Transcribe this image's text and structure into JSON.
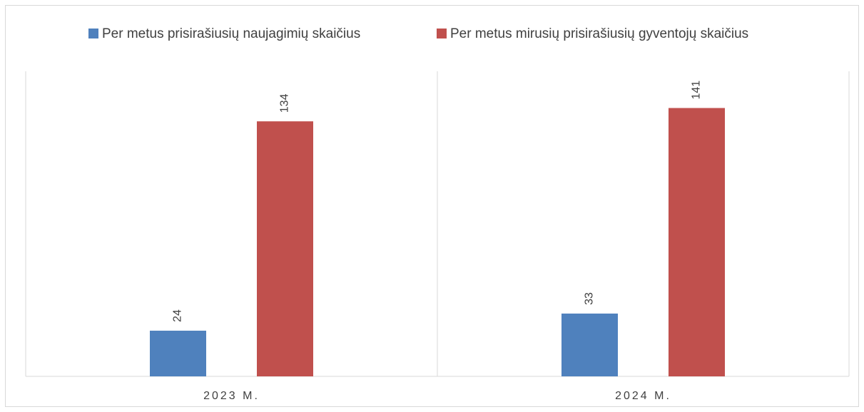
{
  "chart_data": {
    "type": "bar",
    "categories": [
      "2023 M.",
      "2024 M."
    ],
    "series": [
      {
        "name": "Per metus prisirašiusių naujagimių skaičius",
        "color": "#4f81bd",
        "values": [
          24,
          33
        ]
      },
      {
        "name": "Per metus mirusių prisirašiusių gyventojų skaičius",
        "color": "#c0504d",
        "values": [
          134,
          141
        ]
      }
    ],
    "legend": "top"
  }
}
